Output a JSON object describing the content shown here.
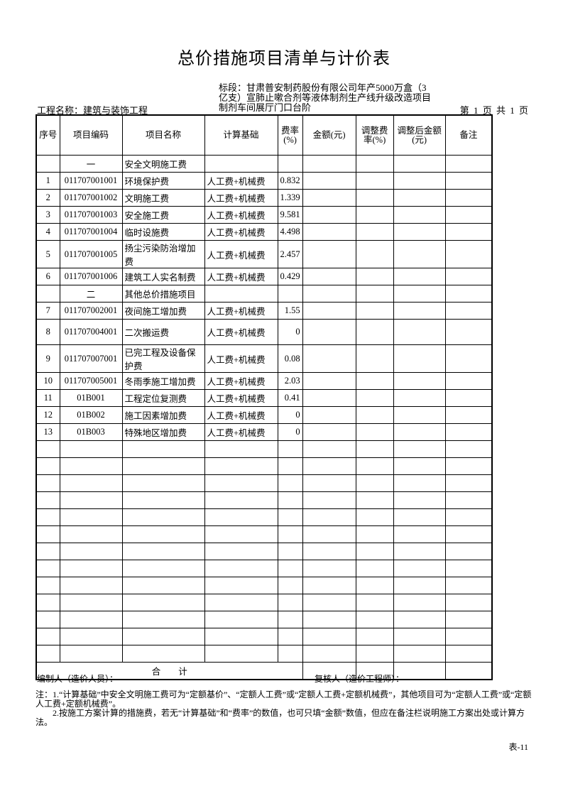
{
  "title": "总价措施项目清单与计价表",
  "section_label": "标段：甘肃普安制药股份有限公司年产5000万盒（3亿支）宣肺止嗽合剂等液体制剂生产线升级改造项目制剂车间展厅门口台阶",
  "project_name": "工程名称：建筑与装饰工程",
  "page_info": "第 1 页  共 1 页",
  "headers": [
    "序号",
    "项目编码",
    "项目名称",
    "计算基础",
    "费率(%)",
    "金额(元)",
    "调整费率(%)",
    "调整后金额(元)",
    "备注"
  ],
  "rows": [
    [
      "",
      "一",
      "安全文明施工费",
      "",
      ""
    ],
    [
      "1",
      "011707001001",
      "环境保护费",
      "人工费+机械费",
      "0.832"
    ],
    [
      "2",
      "011707001002",
      "文明施工费",
      "人工费+机械费",
      "1.339"
    ],
    [
      "3",
      "011707001003",
      "安全施工费",
      "人工费+机械费",
      "9.581"
    ],
    [
      "4",
      "011707001004",
      "临时设施费",
      "人工费+机械费",
      "4.498"
    ],
    [
      "5",
      "011707001005",
      "扬尘污染防治增加费",
      "人工费+机械费",
      "2.457"
    ],
    [
      "6",
      "011707001006",
      "建筑工人实名制费",
      "人工费+机械费",
      "0.429"
    ],
    [
      "",
      "二",
      "其他总价措施项目",
      "",
      ""
    ],
    [
      "7",
      "011707002001",
      "夜间施工增加费",
      "人工费+机械费",
      "1.55"
    ],
    [
      "8",
      "011707004001",
      "二次搬运费",
      "人工费+机械费",
      "0"
    ],
    [
      "9",
      "011707007001",
      "已完工程及设备保护费",
      "人工费+机械费",
      "0.08"
    ],
    [
      "10",
      "011707005001",
      "冬雨季施工增加费",
      "人工费+机械费",
      "2.03"
    ],
    [
      "11",
      "01B001",
      "工程定位复测费",
      "人工费+机械费",
      "0.41"
    ],
    [
      "12",
      "01B002",
      "施工因素增加费",
      "人工费+机械费",
      "0"
    ],
    [
      "13",
      "01B003",
      "特殊地区增加费",
      "人工费+机械费",
      "0"
    ]
  ],
  "total_label": "合　　计",
  "preparer": "编制人（造价人员）：",
  "reviewer": "复核人（造价工程师）：",
  "note1": "注：1.“计算基础”中安全文明施工费可为“定额基价”、“定额人工费”或“定额人工费+定额机械费”，其他项目可为“定额人工费”或“定额人工费+定额机械费”。",
  "note2": "　　2.按施工方案计算的措施费，若无“计算基础”和“费率”的数值，也可只填“金额”数值，但应在备注栏说明施工方案出处或计算方法。",
  "table_no": "表-11"
}
